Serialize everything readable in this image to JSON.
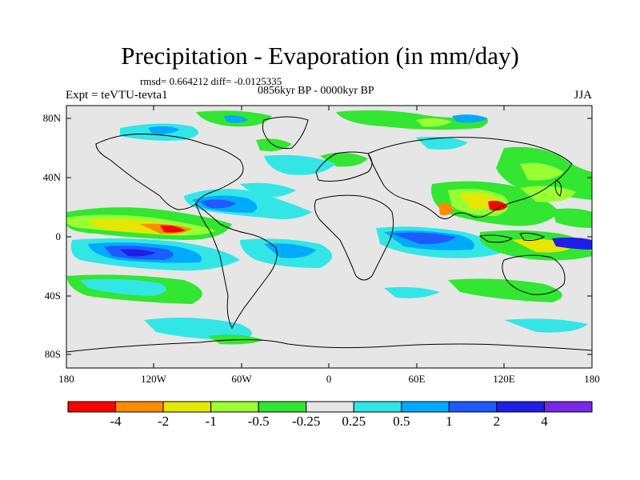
{
  "header": {
    "title": "Precipitation - Evaporation (in mm/day)",
    "stats": "rmsd= 0.664212 diff= -0.0125335",
    "period": "0856kyr BP - 0000kyr BP",
    "experiment": "Expt = teVTU-tevta1",
    "season": "JJA"
  },
  "axes": {
    "lat_ticks": [
      "80N",
      "40N",
      "0",
      "40S",
      "80S"
    ],
    "lon_ticks": [
      "180",
      "120W",
      "60W",
      "0",
      "60E",
      "120E",
      "180"
    ]
  },
  "colorbar": {
    "colors": [
      "#ff0000",
      "#ff8c00",
      "#e6e600",
      "#9aff32",
      "#32e632",
      "#e6e6e6",
      "#32e6e6",
      "#00aaff",
      "#1e5aff",
      "#1e1ee6",
      "#7828e6"
    ],
    "labels": [
      "-4",
      "-2",
      "-1",
      "-0.5",
      "-0.25",
      "0.25",
      "0.5",
      "1",
      "2",
      "4"
    ]
  },
  "map": {
    "background": "#e6e6e6",
    "coastline": "#000000"
  }
}
